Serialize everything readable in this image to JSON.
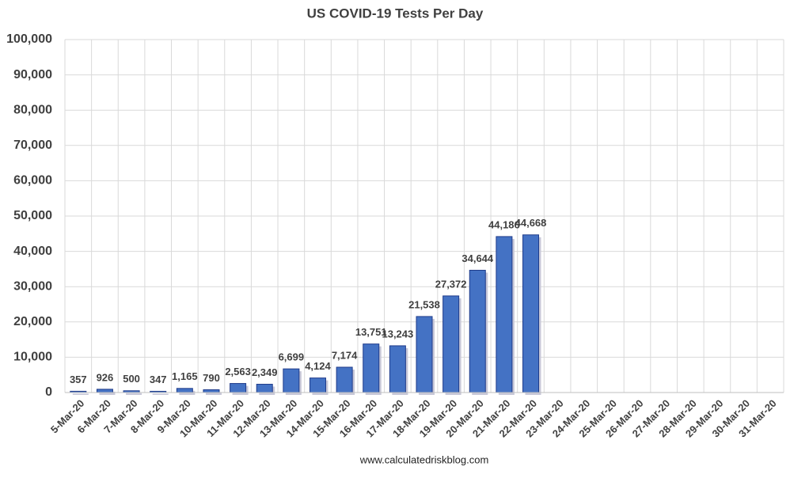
{
  "chart_data": {
    "type": "bar",
    "title": "US COVID-19 Tests Per Day",
    "categories": [
      "5-Mar-20",
      "6-Mar-20",
      "7-Mar-20",
      "8-Mar-20",
      "9-Mar-20",
      "10-Mar-20",
      "11-Mar-20",
      "12-Mar-20",
      "13-Mar-20",
      "14-Mar-20",
      "15-Mar-20",
      "16-Mar-20",
      "17-Mar-20",
      "18-Mar-20",
      "19-Mar-20",
      "20-Mar-20",
      "21-Mar-20",
      "22-Mar-20",
      "23-Mar-20",
      "24-Mar-20",
      "25-Mar-20",
      "26-Mar-20",
      "27-Mar-20",
      "28-Mar-20",
      "29-Mar-20",
      "30-Mar-20",
      "31-Mar-20"
    ],
    "values": [
      357,
      926,
      500,
      347,
      1165,
      790,
      2563,
      2349,
      6699,
      4124,
      7174,
      13751,
      13243,
      21538,
      27372,
      34644,
      44186,
      44668,
      null,
      null,
      null,
      null,
      null,
      null,
      null,
      null,
      null
    ],
    "value_labels": [
      "357",
      "926",
      "500",
      "347",
      "1,165",
      "790",
      "2,563",
      "2,349",
      "6,699",
      "4,124",
      "7,174",
      "13,751",
      "13,243",
      "21,538",
      "27,372",
      "34,644",
      "44,186",
      "44,668",
      null,
      null,
      null,
      null,
      null,
      null,
      null,
      null,
      null
    ],
    "color": "#4472c4",
    "ylim": [
      0,
      100000
    ],
    "yticks": [
      0,
      {
        "value": 10000,
        "label": "10,000"
      },
      {
        "value": 20000,
        "label": "20,000"
      },
      {
        "value": 30000,
        "label": "30,000"
      },
      {
        "value": 40000,
        "label": "40,000"
      },
      {
        "value": 50000,
        "label": "50,000"
      },
      {
        "value": 60000,
        "label": "60,000"
      },
      {
        "value": 70000,
        "label": "70,000"
      },
      {
        "value": 80000,
        "label": "80,000"
      },
      {
        "value": 90000,
        "label": "90,000"
      },
      {
        "value": 100000,
        "label": "100,000"
      }
    ],
    "grid": true,
    "source": "www.calculatedriskblog.com"
  }
}
